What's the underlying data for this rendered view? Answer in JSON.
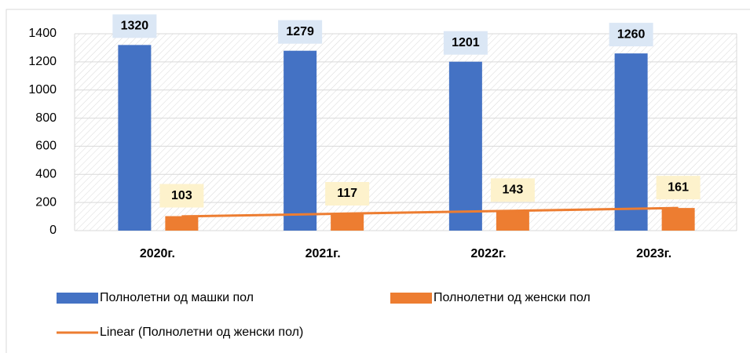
{
  "chart_data": {
    "type": "bar",
    "categories": [
      "2020г.",
      "2021г.",
      "2022г.",
      "2023г."
    ],
    "series": [
      {
        "name": "Полнолетни од машки пол",
        "color": "#4472c4",
        "values": [
          1320,
          1279,
          1201,
          1260
        ],
        "label_bg": "#dbe7f5"
      },
      {
        "name": "Полнолетни од женски пол",
        "color": "#ed7d31",
        "values": [
          103,
          117,
          143,
          161
        ],
        "label_bg": "#fdf2cc"
      },
      {
        "name": "Linear (Полнолетни од женски пол)",
        "color": "#ed7d31",
        "type": "line",
        "values": [
          101,
          121,
          141,
          161
        ]
      }
    ],
    "ylim": [
      0,
      1400
    ],
    "yticks": [
      0,
      200,
      400,
      600,
      800,
      1000,
      1200,
      1400
    ],
    "grid": true,
    "legend": "bottom"
  }
}
